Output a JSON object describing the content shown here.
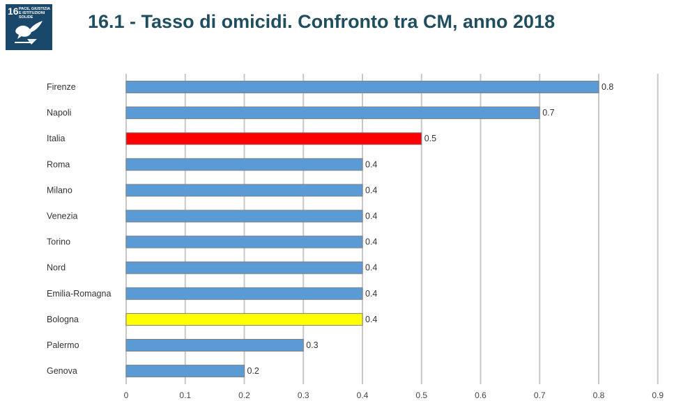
{
  "badge": {
    "number": "16",
    "text": "PACE, GIUSTIZIA E ISTITUZIONI SOLIDE"
  },
  "title": "16.1 - Tasso di omicidi. Confronto tra CM, anno 2018",
  "colors": {
    "default": "#5b9bd5",
    "italia": "#ff0000",
    "bologna": "#ffff00",
    "badge": "#19486a",
    "title": "#1f4e5f"
  },
  "chart_data": {
    "type": "bar",
    "orientation": "horizontal",
    "title": "16.1 - Tasso di omicidi. Confronto tra CM, anno 2018",
    "categories": [
      "Firenze",
      "Napoli",
      "Italia",
      "Roma",
      "Milano",
      "Venezia",
      "Torino",
      "Nord",
      "Emilia-Romagna",
      "Bologna",
      "Palermo",
      "Genova"
    ],
    "values": [
      0.8,
      0.7,
      0.5,
      0.4,
      0.4,
      0.4,
      0.4,
      0.4,
      0.4,
      0.4,
      0.3,
      0.2
    ],
    "bar_colors": [
      "#5b9bd5",
      "#5b9bd5",
      "#ff0000",
      "#5b9bd5",
      "#5b9bd5",
      "#5b9bd5",
      "#5b9bd5",
      "#5b9bd5",
      "#5b9bd5",
      "#ffff00",
      "#5b9bd5",
      "#5b9bd5"
    ],
    "data_labels": [
      "0.8",
      "0.7",
      "0.5",
      "0.4",
      "0.4",
      "0.4",
      "0.4",
      "0.4",
      "0.4",
      "0.4",
      "0.3",
      "0.2"
    ],
    "x_ticks": [
      0,
      0.1,
      0.2,
      0.3,
      0.4,
      0.5,
      0.6,
      0.7,
      0.8,
      0.9
    ],
    "x_tick_labels": [
      "0",
      "0.1",
      "0.2",
      "0.3",
      "0.4",
      "0.5",
      "0.6",
      "0.7",
      "0.8",
      "0.9"
    ],
    "xlim": [
      0,
      0.9
    ],
    "xlabel": "",
    "ylabel": "",
    "grid": "vertical",
    "legend": "none"
  }
}
